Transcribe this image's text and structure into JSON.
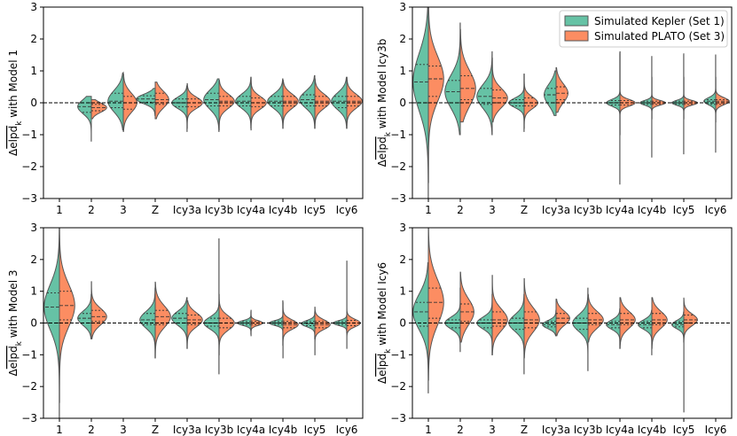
{
  "chart_data": [
    {
      "type": "violin",
      "ylabel": "Δelpd_k with Model 1",
      "ylabel_sub": "k",
      "categories": [
        "1",
        "2",
        "3",
        "Z",
        "Icy3a",
        "Icy3b",
        "Icy4a",
        "Icy4b",
        "Icy5",
        "Icy6"
      ],
      "ylim": [
        -3,
        3
      ],
      "yticks": [
        -3,
        -2,
        -1,
        0,
        1,
        2,
        3
      ],
      "zero_line": true,
      "series": [
        {
          "name": "Simulated Kepler (Set 1)",
          "side": "left",
          "color": "#66c2a5",
          "violins": [
            null,
            {
              "min": -1.2,
              "max": 0.2,
              "median": -0.12,
              "q1": -0.3,
              "q3": 0.0,
              "width": 0.4
            },
            {
              "min": -0.85,
              "max": 0.95,
              "median": 0.05,
              "q1": -0.15,
              "q3": 0.3,
              "width": 0.45
            },
            {
              "min": -0.4,
              "max": 0.45,
              "median": 0.12,
              "q1": 0.02,
              "q3": 0.22,
              "width": 0.55
            },
            {
              "min": -0.9,
              "max": 0.55,
              "median": 0.0,
              "q1": -0.12,
              "q3": 0.12,
              "width": 0.45
            },
            {
              "min": -0.9,
              "max": 0.75,
              "median": 0.1,
              "q1": -0.1,
              "q3": 0.3,
              "width": 0.45
            },
            {
              "min": -0.8,
              "max": 0.8,
              "median": 0.05,
              "q1": -0.1,
              "q3": 0.2,
              "width": 0.45
            },
            {
              "min": -0.8,
              "max": 0.75,
              "median": 0.05,
              "q1": -0.1,
              "q3": 0.2,
              "width": 0.45
            },
            {
              "min": -0.8,
              "max": 0.85,
              "median": 0.1,
              "q1": -0.1,
              "q3": 0.25,
              "width": 0.45
            },
            {
              "min": -0.8,
              "max": 0.8,
              "median": 0.05,
              "q1": -0.15,
              "q3": 0.2,
              "width": 0.45
            }
          ]
        },
        {
          "name": "Simulated PLATO (Set 3)",
          "side": "right",
          "color": "#fc8d62",
          "violins": [
            null,
            {
              "min": -0.5,
              "max": 0.1,
              "median": -0.15,
              "q1": -0.25,
              "q3": -0.05,
              "width": 0.45
            },
            {
              "min": -0.9,
              "max": 0.9,
              "median": 0.0,
              "q1": -0.2,
              "q3": 0.2,
              "width": 0.4
            },
            {
              "min": -0.5,
              "max": 0.65,
              "median": 0.1,
              "q1": -0.05,
              "q3": 0.3,
              "width": 0.4
            },
            {
              "min": -0.8,
              "max": 0.6,
              "median": 0.0,
              "q1": -0.12,
              "q3": 0.12,
              "width": 0.45
            },
            {
              "min": -0.85,
              "max": 0.7,
              "median": 0.05,
              "q1": -0.1,
              "q3": 0.2,
              "width": 0.45
            },
            {
              "min": -0.85,
              "max": 0.8,
              "median": 0.0,
              "q1": -0.12,
              "q3": 0.15,
              "width": 0.45
            },
            {
              "min": -0.8,
              "max": 0.7,
              "median": 0.05,
              "q1": -0.1,
              "q3": 0.2,
              "width": 0.45
            },
            {
              "min": -0.8,
              "max": 0.75,
              "median": 0.05,
              "q1": -0.1,
              "q3": 0.2,
              "width": 0.45
            },
            {
              "min": -0.8,
              "max": 0.8,
              "median": 0.05,
              "q1": -0.1,
              "q3": 0.2,
              "width": 0.45
            }
          ]
        }
      ]
    },
    {
      "type": "violin",
      "ylabel": "Δelpd_k with Model Icy3b",
      "ylabel_sub": "k",
      "categories": [
        "1",
        "2",
        "3",
        "Z",
        "Icy3a",
        "Icy3b",
        "Icy4a",
        "Icy4b",
        "Icy5",
        "Icy6"
      ],
      "ylim": [
        -3,
        3
      ],
      "yticks": [
        -3,
        -2,
        -1,
        0,
        1,
        2,
        3
      ],
      "legend": {
        "location": "top-right"
      },
      "zero_line": true,
      "series": [
        {
          "name": "Simulated Kepler (Set 1)",
          "side": "left",
          "color": "#66c2a5",
          "violins": [
            {
              "min": -3.0,
              "max": 3.0,
              "median": 0.65,
              "q1": 0.0,
              "q3": 1.2,
              "width": 0.45
            },
            {
              "min": -1.0,
              "max": 2.5,
              "median": 0.35,
              "q1": 0.0,
              "q3": 0.7,
              "width": 0.45
            },
            {
              "min": -1.0,
              "max": 1.6,
              "median": 0.2,
              "q1": -0.05,
              "q3": 0.45,
              "width": 0.45
            },
            {
              "min": -0.9,
              "max": 0.9,
              "median": 0.0,
              "q1": -0.1,
              "q3": 0.1,
              "width": 0.45
            },
            {
              "min": -0.4,
              "max": 1.0,
              "median": 0.25,
              "q1": 0.0,
              "q3": 0.45,
              "width": 0.35
            },
            null,
            {
              "min": -2.55,
              "max": 1.6,
              "median": 0.0,
              "q1": -0.07,
              "q3": 0.07,
              "width": 0.4
            },
            {
              "min": -1.7,
              "max": 1.45,
              "median": 0.0,
              "q1": -0.05,
              "q3": 0.05,
              "width": 0.35
            },
            {
              "min": -1.6,
              "max": 1.55,
              "median": 0.0,
              "q1": -0.05,
              "q3": 0.05,
              "width": 0.35
            },
            {
              "min": -1.55,
              "max": 1.5,
              "median": 0.05,
              "q1": -0.05,
              "q3": 0.1,
              "width": 0.35
            }
          ]
        },
        {
          "name": "Simulated PLATO (Set 3)",
          "side": "right",
          "color": "#fc8d62",
          "violins": [
            {
              "min": -2.5,
              "max": 3.0,
              "median": 0.75,
              "q1": 0.2,
              "q3": 1.15,
              "width": 0.45
            },
            {
              "min": -0.6,
              "max": 2.3,
              "median": 0.45,
              "q1": 0.1,
              "q3": 0.85,
              "width": 0.45
            },
            {
              "min": -0.6,
              "max": 1.4,
              "median": 0.15,
              "q1": 0.0,
              "q3": 0.4,
              "width": 0.45
            },
            {
              "min": -0.8,
              "max": 0.9,
              "median": 0.0,
              "q1": -0.1,
              "q3": 0.15,
              "width": 0.4
            },
            {
              "min": -0.3,
              "max": 1.1,
              "median": 0.3,
              "q1": 0.1,
              "q3": 0.5,
              "width": 0.35
            },
            null,
            {
              "min": -1.0,
              "max": 1.6,
              "median": 0.0,
              "q1": -0.07,
              "q3": 0.07,
              "width": 0.45
            },
            {
              "min": -0.5,
              "max": 0.8,
              "median": 0.0,
              "q1": -0.05,
              "q3": 0.05,
              "width": 0.4
            },
            {
              "min": -0.5,
              "max": 0.8,
              "median": 0.0,
              "q1": -0.05,
              "q3": 0.05,
              "width": 0.4
            },
            {
              "min": -0.6,
              "max": 0.8,
              "median": 0.05,
              "q1": -0.05,
              "q3": 0.1,
              "width": 0.4
            }
          ]
        }
      ]
    },
    {
      "type": "violin",
      "ylabel": "Δelpd_k with Model 3",
      "ylabel_sub": "k",
      "categories": [
        "1",
        "2",
        "3",
        "Z",
        "Icy3a",
        "Icy3b",
        "Icy4a",
        "Icy4b",
        "Icy5",
        "Icy6"
      ],
      "ylim": [
        -3,
        3
      ],
      "yticks": [
        -3,
        -2,
        -1,
        0,
        1,
        2,
        3
      ],
      "zero_line": true,
      "series": [
        {
          "name": "Simulated Kepler (Set 1)",
          "side": "left",
          "color": "#66c2a5",
          "violins": [
            {
              "min": -3.0,
              "max": 3.0,
              "median": 0.5,
              "q1": 0.0,
              "q3": 0.95,
              "width": 0.45
            },
            {
              "min": -0.5,
              "max": 0.9,
              "median": 0.15,
              "q1": 0.0,
              "q3": 0.3,
              "width": 0.4
            },
            null,
            {
              "min": -1.1,
              "max": 1.1,
              "median": 0.1,
              "q1": -0.05,
              "q3": 0.3,
              "width": 0.45
            },
            {
              "min": -0.8,
              "max": 0.8,
              "median": 0.15,
              "q1": 0.0,
              "q3": 0.3,
              "width": 0.45
            },
            {
              "min": -1.6,
              "max": 2.65,
              "median": 0.0,
              "q1": -0.1,
              "q3": 0.15,
              "width": 0.45
            },
            {
              "min": -0.35,
              "max": 0.35,
              "median": 0.0,
              "q1": -0.05,
              "q3": 0.05,
              "width": 0.4
            },
            {
              "min": -0.7,
              "max": 0.7,
              "median": 0.0,
              "q1": -0.05,
              "q3": 0.05,
              "width": 0.4
            },
            {
              "min": -0.5,
              "max": 0.35,
              "median": -0.02,
              "q1": -0.08,
              "q3": 0.05,
              "width": 0.4
            },
            {
              "min": -0.3,
              "max": 0.25,
              "median": 0.0,
              "q1": -0.05,
              "q3": 0.05,
              "width": 0.4
            }
          ]
        },
        {
          "name": "Simulated PLATO (Set 3)",
          "side": "right",
          "color": "#fc8d62",
          "violins": [
            {
              "min": -2.5,
              "max": 3.0,
              "median": 0.55,
              "q1": 0.1,
              "q3": 1.0,
              "width": 0.45
            },
            {
              "min": -0.5,
              "max": 1.3,
              "median": 0.2,
              "q1": 0.05,
              "q3": 0.4,
              "width": 0.45
            },
            null,
            {
              "min": -1.1,
              "max": 1.3,
              "median": 0.2,
              "q1": -0.05,
              "q3": 0.4,
              "width": 0.45
            },
            {
              "min": -0.8,
              "max": 0.7,
              "median": 0.1,
              "q1": -0.05,
              "q3": 0.25,
              "width": 0.45
            },
            {
              "min": -1.0,
              "max": 0.9,
              "median": 0.0,
              "q1": -0.15,
              "q3": 0.15,
              "width": 0.45
            },
            {
              "min": -0.4,
              "max": 0.4,
              "median": 0.0,
              "q1": -0.05,
              "q3": 0.05,
              "width": 0.35
            },
            {
              "min": -1.1,
              "max": 0.65,
              "median": -0.05,
              "q1": -0.15,
              "q3": 0.05,
              "width": 0.45
            },
            {
              "min": -1.0,
              "max": 0.5,
              "median": -0.05,
              "q1": -0.15,
              "q3": 0.05,
              "width": 0.45
            },
            {
              "min": -0.8,
              "max": 1.95,
              "median": 0.0,
              "q1": -0.08,
              "q3": 0.08,
              "width": 0.4
            }
          ]
        }
      ]
    },
    {
      "type": "violin",
      "ylabel": "Δelpd_k with Model Icy6",
      "ylabel_sub": "k",
      "categories": [
        "1",
        "2",
        "3",
        "Z",
        "Icy3a",
        "Icy3b",
        "Icy4a",
        "Icy4b",
        "Icy5",
        "Icy6"
      ],
      "ylim": [
        -3,
        3
      ],
      "yticks": [
        -3,
        -2,
        -1,
        0,
        1,
        2,
        3
      ],
      "zero_line": true,
      "series": [
        {
          "name": "Simulated Kepler (Set 1)",
          "side": "left",
          "color": "#66c2a5",
          "violins": [
            {
              "min": -2.2,
              "max": 1.9,
              "median": 0.35,
              "q1": -0.1,
              "q3": 0.65,
              "width": 0.45
            },
            {
              "min": -0.9,
              "max": 1.1,
              "median": 0.0,
              "q1": -0.15,
              "q3": 0.1,
              "width": 0.45
            },
            {
              "min": -1.0,
              "max": 0.9,
              "median": 0.0,
              "q1": -0.15,
              "q3": 0.1,
              "width": 0.45
            },
            {
              "min": -1.6,
              "max": 0.9,
              "median": 0.0,
              "q1": -0.2,
              "q3": 0.15,
              "width": 0.45
            },
            {
              "min": -0.4,
              "max": 0.4,
              "median": -0.05,
              "q1": -0.12,
              "q3": 0.05,
              "width": 0.4
            },
            {
              "min": -1.5,
              "max": 1.1,
              "median": 0.0,
              "q1": -0.2,
              "q3": 0.15,
              "width": 0.45
            },
            {
              "min": -0.8,
              "max": 0.45,
              "median": -0.05,
              "q1": -0.15,
              "q3": 0.05,
              "width": 0.4
            },
            {
              "min": -1.0,
              "max": 0.4,
              "median": -0.05,
              "q1": -0.15,
              "q3": 0.05,
              "width": 0.4
            },
            {
              "min": -0.6,
              "max": 0.35,
              "median": -0.05,
              "q1": -0.12,
              "q3": 0.05,
              "width": 0.35
            },
            null
          ]
        },
        {
          "name": "Simulated PLATO (Set 3)",
          "side": "right",
          "color": "#fc8d62",
          "violins": [
            {
              "min": -1.8,
              "max": 3.0,
              "median": 0.65,
              "q1": 0.15,
              "q3": 1.1,
              "width": 0.45
            },
            {
              "min": -0.6,
              "max": 1.6,
              "median": 0.35,
              "q1": 0.05,
              "q3": 0.6,
              "width": 0.4
            },
            {
              "min": -1.0,
              "max": 1.5,
              "median": 0.1,
              "q1": -0.1,
              "q3": 0.35,
              "width": 0.45
            },
            {
              "min": -1.1,
              "max": 1.4,
              "median": 0.1,
              "q1": -0.15,
              "q3": 0.35,
              "width": 0.45
            },
            {
              "min": -0.4,
              "max": 0.75,
              "median": 0.15,
              "q1": 0.0,
              "q3": 0.3,
              "width": 0.4
            },
            {
              "min": -0.6,
              "max": 0.9,
              "median": 0.1,
              "q1": -0.05,
              "q3": 0.3,
              "width": 0.45
            },
            {
              "min": -0.8,
              "max": 0.8,
              "median": 0.1,
              "q1": -0.05,
              "q3": 0.3,
              "width": 0.45
            },
            {
              "min": -0.8,
              "max": 0.8,
              "median": 0.1,
              "q1": -0.05,
              "q3": 0.3,
              "width": 0.45
            },
            {
              "min": -2.8,
              "max": 0.8,
              "median": 0.1,
              "q1": 0.0,
              "q3": 0.25,
              "width": 0.4
            },
            null
          ]
        }
      ]
    }
  ]
}
